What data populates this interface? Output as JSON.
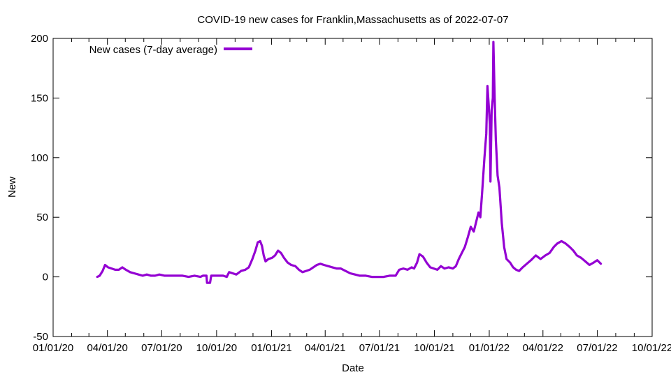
{
  "chart_data": {
    "type": "line",
    "title": "COVID-19 new cases for Franklin,Massachusetts as of 2022-07-07",
    "xlabel": "Date",
    "ylabel": "New",
    "xlim": [
      "2020-01-01",
      "2022-10-01"
    ],
    "ylim": [
      -50,
      200
    ],
    "grid": false,
    "legend_position": "top-left",
    "x_ticks": [
      "01/01/20",
      "04/01/20",
      "07/01/20",
      "10/01/20",
      "01/01/21",
      "04/01/21",
      "07/01/21",
      "10/01/21",
      "01/01/22",
      "04/01/22",
      "07/01/22",
      "10/01/22"
    ],
    "y_ticks": [
      "-50",
      "0",
      "50",
      "100",
      "150",
      "200"
    ],
    "series": [
      {
        "name": "New cases (7-day average)",
        "color": "#9400d3",
        "points": [
          [
            "2020-03-15",
            0
          ],
          [
            "2020-03-19",
            1
          ],
          [
            "2020-03-24",
            5
          ],
          [
            "2020-03-28",
            10
          ],
          [
            "2020-04-02",
            8
          ],
          [
            "2020-04-08",
            7
          ],
          [
            "2020-04-14",
            6
          ],
          [
            "2020-04-20",
            6
          ],
          [
            "2020-04-26",
            8
          ],
          [
            "2020-05-02",
            6
          ],
          [
            "2020-05-09",
            4
          ],
          [
            "2020-05-16",
            3
          ],
          [
            "2020-05-23",
            2
          ],
          [
            "2020-05-30",
            1
          ],
          [
            "2020-06-06",
            2
          ],
          [
            "2020-06-13",
            1
          ],
          [
            "2020-06-20",
            1
          ],
          [
            "2020-06-27",
            2
          ],
          [
            "2020-07-06",
            1
          ],
          [
            "2020-07-16",
            1
          ],
          [
            "2020-07-26",
            1
          ],
          [
            "2020-08-05",
            1
          ],
          [
            "2020-08-15",
            0
          ],
          [
            "2020-08-25",
            1
          ],
          [
            "2020-09-04",
            0
          ],
          [
            "2020-09-08",
            1
          ],
          [
            "2020-09-14",
            1
          ],
          [
            "2020-09-15",
            -5
          ],
          [
            "2020-09-20",
            -5
          ],
          [
            "2020-09-22",
            1
          ],
          [
            "2020-10-02",
            1
          ],
          [
            "2020-10-12",
            1
          ],
          [
            "2020-10-18",
            0
          ],
          [
            "2020-10-22",
            4
          ],
          [
            "2020-10-28",
            3
          ],
          [
            "2020-11-03",
            2
          ],
          [
            "2020-11-11",
            5
          ],
          [
            "2020-11-18",
            6
          ],
          [
            "2020-11-24",
            8
          ],
          [
            "2020-11-30",
            15
          ],
          [
            "2020-12-05",
            22
          ],
          [
            "2020-12-09",
            29
          ],
          [
            "2020-12-13",
            30
          ],
          [
            "2020-12-16",
            26
          ],
          [
            "2020-12-19",
            18
          ],
          [
            "2020-12-22",
            13
          ],
          [
            "2020-12-27",
            15
          ],
          [
            "2021-01-02",
            16
          ],
          [
            "2021-01-07",
            18
          ],
          [
            "2021-01-12",
            22
          ],
          [
            "2021-01-17",
            20
          ],
          [
            "2021-01-22",
            16
          ],
          [
            "2021-01-28",
            12
          ],
          [
            "2021-02-03",
            10
          ],
          [
            "2021-02-10",
            9
          ],
          [
            "2021-02-16",
            6
          ],
          [
            "2021-02-22",
            4
          ],
          [
            "2021-02-28",
            5
          ],
          [
            "2021-03-06",
            6
          ],
          [
            "2021-03-12",
            8
          ],
          [
            "2021-03-18",
            10
          ],
          [
            "2021-03-24",
            11
          ],
          [
            "2021-03-30",
            10
          ],
          [
            "2021-04-06",
            9
          ],
          [
            "2021-04-13",
            8
          ],
          [
            "2021-04-20",
            7
          ],
          [
            "2021-04-27",
            7
          ],
          [
            "2021-05-05",
            5
          ],
          [
            "2021-05-13",
            3
          ],
          [
            "2021-05-21",
            2
          ],
          [
            "2021-05-29",
            1
          ],
          [
            "2021-06-08",
            1
          ],
          [
            "2021-06-18",
            0
          ],
          [
            "2021-06-28",
            0
          ],
          [
            "2021-07-08",
            0
          ],
          [
            "2021-07-18",
            1
          ],
          [
            "2021-07-28",
            1
          ],
          [
            "2021-08-03",
            6
          ],
          [
            "2021-08-10",
            7
          ],
          [
            "2021-08-17",
            6
          ],
          [
            "2021-08-24",
            8
          ],
          [
            "2021-08-28",
            7
          ],
          [
            "2021-09-02",
            12
          ],
          [
            "2021-09-06",
            19
          ],
          [
            "2021-09-12",
            17
          ],
          [
            "2021-09-18",
            12
          ],
          [
            "2021-09-24",
            8
          ],
          [
            "2021-09-30",
            7
          ],
          [
            "2021-10-06",
            6
          ],
          [
            "2021-10-12",
            9
          ],
          [
            "2021-10-18",
            7
          ],
          [
            "2021-10-25",
            8
          ],
          [
            "2021-11-01",
            7
          ],
          [
            "2021-11-06",
            9
          ],
          [
            "2021-11-11",
            15
          ],
          [
            "2021-11-16",
            20
          ],
          [
            "2021-11-21",
            25
          ],
          [
            "2021-11-26",
            33
          ],
          [
            "2021-12-01",
            42
          ],
          [
            "2021-12-06",
            38
          ],
          [
            "2021-12-10",
            46
          ],
          [
            "2021-12-14",
            54
          ],
          [
            "2021-12-17",
            50
          ],
          [
            "2021-12-20",
            70
          ],
          [
            "2021-12-24",
            100
          ],
          [
            "2021-12-27",
            120
          ],
          [
            "2021-12-29",
            160
          ],
          [
            "2021-12-31",
            145
          ],
          [
            "2022-01-02",
            128
          ],
          [
            "2022-01-03",
            80
          ],
          [
            "2022-01-05",
            140
          ],
          [
            "2022-01-07",
            150
          ],
          [
            "2022-01-08",
            197
          ],
          [
            "2022-01-10",
            150
          ],
          [
            "2022-01-12",
            115
          ],
          [
            "2022-01-15",
            85
          ],
          [
            "2022-01-18",
            75
          ],
          [
            "2022-01-22",
            45
          ],
          [
            "2022-01-26",
            25
          ],
          [
            "2022-01-30",
            15
          ],
          [
            "2022-02-05",
            12
          ],
          [
            "2022-02-10",
            8
          ],
          [
            "2022-02-15",
            6
          ],
          [
            "2022-02-20",
            5
          ],
          [
            "2022-02-26",
            8
          ],
          [
            "2022-03-05",
            11
          ],
          [
            "2022-03-12",
            14
          ],
          [
            "2022-03-20",
            18
          ],
          [
            "2022-03-28",
            15
          ],
          [
            "2022-04-05",
            18
          ],
          [
            "2022-04-12",
            20
          ],
          [
            "2022-04-19",
            25
          ],
          [
            "2022-04-25",
            28
          ],
          [
            "2022-05-02",
            30
          ],
          [
            "2022-05-09",
            28
          ],
          [
            "2022-05-16",
            25
          ],
          [
            "2022-05-22",
            22
          ],
          [
            "2022-05-28",
            18
          ],
          [
            "2022-06-04",
            16
          ],
          [
            "2022-06-11",
            13
          ],
          [
            "2022-06-18",
            10
          ],
          [
            "2022-06-25",
            12
          ],
          [
            "2022-07-01",
            14
          ],
          [
            "2022-07-07",
            11
          ]
        ]
      }
    ]
  }
}
